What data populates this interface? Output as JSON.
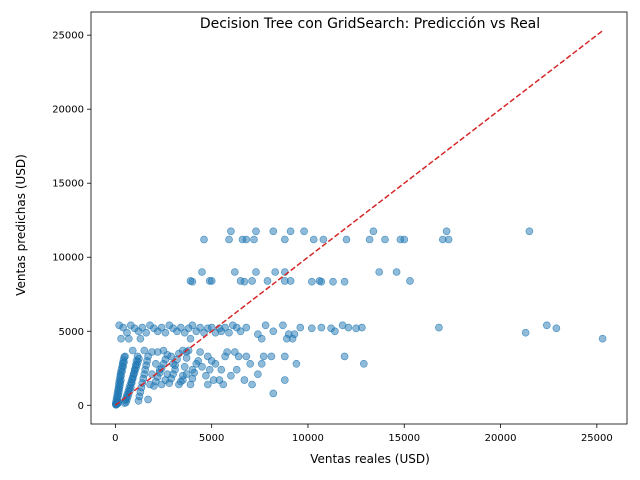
{
  "chart_data": {
    "type": "scatter",
    "title": "Decision Tree con GridSearch: Predicción vs Real",
    "xlabel": "Ventas reales (USD)",
    "ylabel": "Ventas predichas (USD)",
    "xlim": [
      -1265,
      26565
    ],
    "ylim": [
      -1265,
      26565
    ],
    "xticks": [
      0,
      5000,
      10000,
      15000,
      20000,
      25000
    ],
    "yticks": [
      0,
      5000,
      10000,
      15000,
      20000,
      25000
    ],
    "grid": false,
    "point_color": "#1f77b4",
    "point_opacity": 0.5,
    "reference_line": {
      "x": [
        0,
        25300
      ],
      "y": [
        0,
        25300
      ],
      "color": "#d62728",
      "style": "dashed"
    },
    "points": [
      [
        4600,
        11200
      ],
      [
        5900,
        11200
      ],
      [
        6000,
        11750
      ],
      [
        6600,
        11200
      ],
      [
        6800,
        11200
      ],
      [
        7200,
        11200
      ],
      [
        7300,
        11750
      ],
      [
        8200,
        11750
      ],
      [
        8800,
        11200
      ],
      [
        9100,
        11750
      ],
      [
        9800,
        11750
      ],
      [
        10300,
        11200
      ],
      [
        10800,
        11200
      ],
      [
        12000,
        11200
      ],
      [
        13200,
        11200
      ],
      [
        13400,
        11750
      ],
      [
        14000,
        11200
      ],
      [
        14800,
        11200
      ],
      [
        15000,
        11200
      ],
      [
        17000,
        11200
      ],
      [
        17200,
        11750
      ],
      [
        17300,
        11200
      ],
      [
        21500,
        11750
      ],
      [
        4500,
        9000
      ],
      [
        6200,
        9000
      ],
      [
        7300,
        9000
      ],
      [
        8300,
        9000
      ],
      [
        8800,
        9000
      ],
      [
        13700,
        9000
      ],
      [
        14600,
        9000
      ],
      [
        3900,
        8400
      ],
      [
        4000,
        8350
      ],
      [
        4900,
        8400
      ],
      [
        5000,
        8400
      ],
      [
        6500,
        8400
      ],
      [
        6700,
        8350
      ],
      [
        7100,
        8400
      ],
      [
        7900,
        8400
      ],
      [
        8800,
        8400
      ],
      [
        9100,
        8400
      ],
      [
        10200,
        8350
      ],
      [
        10600,
        8400
      ],
      [
        10700,
        8350
      ],
      [
        11300,
        8350
      ],
      [
        11900,
        8350
      ],
      [
        15300,
        8400
      ],
      [
        16800,
        5250
      ],
      [
        21300,
        4900
      ],
      [
        22400,
        5400
      ],
      [
        22900,
        5200
      ],
      [
        25300,
        4500
      ],
      [
        11800,
        5400
      ],
      [
        12100,
        5250
      ],
      [
        12500,
        5200
      ],
      [
        12800,
        5250
      ],
      [
        11200,
        5200
      ],
      [
        11400,
        5000
      ],
      [
        10700,
        5250
      ],
      [
        10200,
        5200
      ],
      [
        9600,
        5250
      ],
      [
        9000,
        4800
      ],
      [
        9300,
        4800
      ],
      [
        8900,
        4500
      ],
      [
        9200,
        4500
      ],
      [
        8700,
        5400
      ],
      [
        8200,
        5000
      ],
      [
        7800,
        5400
      ],
      [
        7400,
        4800
      ],
      [
        7600,
        4500
      ],
      [
        11900,
        3300
      ],
      [
        12900,
        2800
      ],
      [
        9400,
        2800
      ],
      [
        8800,
        3300
      ],
      [
        8100,
        3300
      ],
      [
        7600,
        2800
      ],
      [
        7400,
        2100
      ],
      [
        7100,
        1400
      ],
      [
        6700,
        1700
      ],
      [
        8800,
        1700
      ],
      [
        8200,
        800
      ],
      [
        6800,
        3300
      ],
      [
        6400,
        3300
      ],
      [
        6200,
        3600
      ],
      [
        6300,
        2400
      ],
      [
        5700,
        3300
      ],
      [
        5500,
        2400
      ],
      [
        5400,
        1700
      ],
      [
        5600,
        1400
      ],
      [
        4800,
        1400
      ],
      [
        5100,
        1700
      ],
      [
        4900,
        2400
      ],
      [
        4800,
        3300
      ],
      [
        4400,
        3600
      ],
      [
        4200,
        2800
      ],
      [
        4000,
        2400
      ],
      [
        3900,
        1400
      ],
      [
        3700,
        2100
      ],
      [
        3500,
        1700
      ],
      [
        3300,
        1400
      ],
      [
        3100,
        2400
      ],
      [
        3000,
        2800
      ],
      [
        2900,
        3300
      ],
      [
        2700,
        2100
      ],
      [
        2600,
        1700
      ],
      [
        2400,
        1400
      ],
      [
        2300,
        2400
      ],
      [
        2200,
        3600
      ],
      [
        2100,
        2800
      ],
      [
        1900,
        2100
      ],
      [
        1800,
        1400
      ],
      [
        1700,
        400
      ],
      [
        6800,
        5250
      ],
      [
        6500,
        5000
      ],
      [
        6300,
        5250
      ],
      [
        6100,
        5400
      ],
      [
        5900,
        4900
      ],
      [
        5700,
        5250
      ],
      [
        5500,
        5000
      ],
      [
        5400,
        5200
      ],
      [
        5200,
        4900
      ],
      [
        5000,
        5250
      ],
      [
        4800,
        5200
      ],
      [
        4600,
        4900
      ],
      [
        4400,
        5250
      ],
      [
        4200,
        5000
      ],
      [
        4000,
        5400
      ],
      [
        3800,
        5200
      ],
      [
        3600,
        4900
      ],
      [
        3400,
        5250
      ],
      [
        3200,
        5000
      ],
      [
        3000,
        5200
      ],
      [
        2800,
        5400
      ],
      [
        2600,
        4900
      ],
      [
        2400,
        5250
      ],
      [
        2200,
        5000
      ],
      [
        2000,
        5200
      ],
      [
        1800,
        5400
      ],
      [
        1600,
        4900
      ],
      [
        1400,
        5250
      ],
      [
        1200,
        5000
      ],
      [
        1000,
        5200
      ],
      [
        800,
        5400
      ],
      [
        600,
        4900
      ],
      [
        400,
        5250
      ],
      [
        200,
        5400
      ],
      [
        300,
        4500
      ],
      [
        700,
        4500
      ],
      [
        1300,
        4500
      ],
      [
        3900,
        4500
      ],
      [
        50,
        50
      ],
      [
        80,
        150
      ],
      [
        100,
        300
      ],
      [
        120,
        500
      ],
      [
        150,
        700
      ],
      [
        180,
        900
      ],
      [
        200,
        1100
      ],
      [
        230,
        1300
      ],
      [
        250,
        1500
      ],
      [
        280,
        1700
      ],
      [
        300,
        2000
      ],
      [
        350,
        2300
      ],
      [
        400,
        2600
      ],
      [
        450,
        2900
      ],
      [
        500,
        3300
      ],
      [
        550,
        200
      ],
      [
        600,
        400
      ],
      [
        650,
        600
      ],
      [
        700,
        800
      ],
      [
        750,
        1000
      ],
      [
        800,
        1200
      ],
      [
        850,
        1500
      ],
      [
        900,
        1800
      ],
      [
        950,
        2100
      ],
      [
        1000,
        2400
      ],
      [
        1050,
        2700
      ],
      [
        1100,
        3000
      ],
      [
        1150,
        3300
      ],
      [
        1200,
        300
      ],
      [
        1250,
        600
      ],
      [
        1300,
        900
      ],
      [
        1350,
        1200
      ],
      [
        1400,
        1500
      ],
      [
        1450,
        1800
      ],
      [
        1500,
        2100
      ],
      [
        1550,
        2400
      ],
      [
        1600,
        2700
      ],
      [
        1650,
        3000
      ],
      [
        1700,
        3300
      ],
      [
        20,
        100
      ],
      [
        40,
        250
      ],
      [
        60,
        450
      ],
      [
        90,
        650
      ],
      [
        110,
        850
      ],
      [
        140,
        1050
      ],
      [
        170,
        1250
      ],
      [
        190,
        1450
      ],
      [
        210,
        1650
      ],
      [
        240,
        1850
      ],
      [
        260,
        2050
      ],
      [
        290,
        2250
      ],
      [
        320,
        2450
      ],
      [
        360,
        2650
      ],
      [
        380,
        2850
      ],
      [
        420,
        3050
      ],
      [
        460,
        3250
      ],
      [
        480,
        150
      ],
      [
        520,
        350
      ],
      [
        570,
        550
      ],
      [
        620,
        750
      ],
      [
        670,
        950
      ],
      [
        720,
        1150
      ],
      [
        770,
        1350
      ],
      [
        820,
        1550
      ],
      [
        870,
        1750
      ],
      [
        920,
        1950
      ],
      [
        970,
        2150
      ],
      [
        1020,
        2350
      ],
      [
        1070,
        2550
      ],
      [
        1120,
        2750
      ],
      [
        1170,
        2950
      ],
      [
        1220,
        3150
      ],
      [
        30,
        30
      ],
      [
        70,
        70
      ],
      [
        130,
        130
      ],
      [
        160,
        200
      ],
      [
        2000,
        1300
      ],
      [
        2100,
        1600
      ],
      [
        2200,
        1900
      ],
      [
        2300,
        2200
      ],
      [
        2400,
        2500
      ],
      [
        2500,
        2800
      ],
      [
        2600,
        3100
      ],
      [
        2700,
        3400
      ],
      [
        2800,
        1500
      ],
      [
        2900,
        1800
      ],
      [
        3000,
        2100
      ],
      [
        3100,
        2700
      ],
      [
        3200,
        3100
      ],
      [
        3300,
        3500
      ],
      [
        3400,
        1600
      ],
      [
        3500,
        2000
      ],
      [
        3600,
        2600
      ],
      [
        3700,
        3200
      ],
      [
        3800,
        3700
      ],
      [
        4000,
        1800
      ],
      [
        4100,
        2200
      ],
      [
        4300,
        3000
      ],
      [
        4500,
        2600
      ],
      [
        4700,
        2000
      ],
      [
        5000,
        3000
      ],
      [
        5200,
        2800
      ],
      [
        5800,
        3600
      ],
      [
        6000,
        2000
      ],
      [
        7000,
        2800
      ],
      [
        7700,
        3300
      ],
      [
        1900,
        3600
      ],
      [
        2500,
        3700
      ],
      [
        3500,
        3700
      ],
      [
        3700,
        3600
      ],
      [
        1500,
        3700
      ],
      [
        900,
        3700
      ]
    ]
  }
}
